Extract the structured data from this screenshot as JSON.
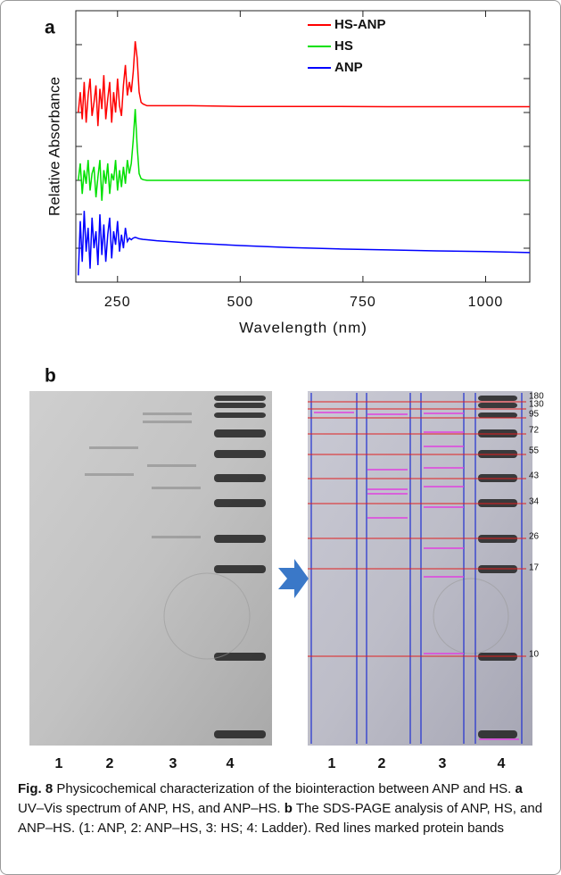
{
  "panel_labels": [
    "a",
    "b"
  ],
  "chart_data": {
    "type": "line",
    "x_label": "Wavelength (nm)",
    "y_label": "Relative Absorbance",
    "x": [
      170,
      174,
      178,
      182,
      186,
      190,
      194,
      198,
      202,
      206,
      210,
      214,
      218,
      222,
      226,
      230,
      234,
      238,
      242,
      246,
      250,
      254,
      258,
      262,
      266,
      270,
      274,
      278,
      282,
      286,
      290,
      294,
      298,
      302,
      310,
      330,
      400,
      500,
      600,
      700,
      800,
      900,
      1000,
      1090
    ],
    "series": [
      {
        "name": "HS-ANP",
        "color": "#ff0000",
        "values": [
          5.0,
          5.6,
          4.8,
          5.9,
          4.7,
          5.5,
          6.0,
          4.9,
          5.3,
          5.8,
          4.6,
          5.7,
          5.1,
          6.1,
          4.8,
          5.4,
          5.9,
          4.7,
          5.6,
          5.0,
          6.0,
          5.2,
          4.9,
          5.8,
          6.4,
          5.5,
          5.9,
          5.6,
          6.2,
          7.1,
          6.6,
          5.6,
          5.3,
          5.25,
          5.2,
          5.2,
          5.2,
          5.18,
          5.18,
          5.18,
          5.17,
          5.17,
          5.17,
          5.17
        ]
      },
      {
        "name": "HS",
        "color": "#00e000",
        "values": [
          3.0,
          3.5,
          2.6,
          3.3,
          2.9,
          3.6,
          2.7,
          3.2,
          3.4,
          2.5,
          3.1,
          3.6,
          2.4,
          3.3,
          2.9,
          3.5,
          2.6,
          3.2,
          3.0,
          3.6,
          2.7,
          3.3,
          2.8,
          3.4,
          2.9,
          3.6,
          3.2,
          3.5,
          4.2,
          5.1,
          4.0,
          3.2,
          3.05,
          3.02,
          3.0,
          3.0,
          3.0,
          3.0,
          3.0,
          3.0,
          3.0,
          3.0,
          3.0,
          3.0
        ]
      },
      {
        "name": "ANP",
        "color": "#0000ff",
        "values": [
          0.2,
          1.8,
          0.6,
          2.1,
          0.9,
          1.6,
          0.4,
          1.9,
          1.0,
          1.5,
          0.5,
          2.0,
          0.8,
          1.7,
          0.6,
          1.4,
          1.9,
          0.7,
          1.5,
          1.1,
          1.8,
          0.9,
          1.4,
          1.0,
          1.6,
          1.2,
          1.3,
          1.25,
          1.3,
          1.32,
          1.3,
          1.28,
          1.27,
          1.26,
          1.25,
          1.22,
          1.15,
          1.08,
          1.02,
          0.98,
          0.95,
          0.92,
          0.9,
          0.87
        ]
      }
    ],
    "xlim": [
      165,
      1090
    ],
    "xticks": [
      250,
      500,
      750,
      1000
    ],
    "ylim": [
      0,
      8
    ],
    "yticks": [
      1,
      2,
      3,
      4,
      5,
      6,
      7
    ],
    "legend": "upper right"
  },
  "gel": {
    "lanes_left": [
      "1",
      "2",
      "3",
      "4"
    ],
    "lanes_right": [
      "1",
      "2",
      "3",
      "4"
    ],
    "markers": [
      "180",
      "130",
      "95",
      "72",
      "55",
      "43",
      "34",
      "26",
      "17",
      "10"
    ]
  },
  "caption": {
    "label": "Fig. 8",
    "text_1": "Physicochemical characterization of the biointeraction between ANP and HS.",
    "panel_a": "a",
    "text_2": "UV–Vis spectrum of ANP, HS, and ANP–HS.",
    "panel_b": "b",
    "text_3": "The SDS-PAGE analysis of ANP, HS, and ANP–HS. (1: ANP, 2: ANP–HS, 3: HS; 4: Ladder). Red lines marked protein bands"
  }
}
